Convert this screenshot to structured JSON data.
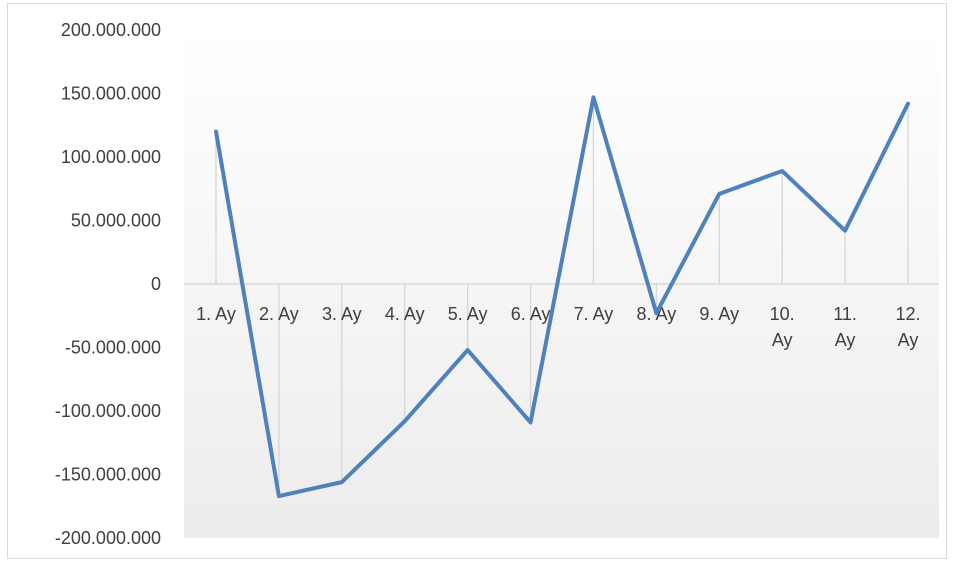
{
  "chart_data": {
    "type": "line",
    "categories": [
      [
        "1. Ay"
      ],
      [
        "2. Ay"
      ],
      [
        "3. Ay"
      ],
      [
        "4. Ay"
      ],
      [
        "5. Ay"
      ],
      [
        "6. Ay"
      ],
      [
        "7. Ay"
      ],
      [
        "8. Ay"
      ],
      [
        "9. Ay"
      ],
      [
        "10.",
        "Ay"
      ],
      [
        "11.",
        "Ay"
      ],
      [
        "12.",
        "Ay"
      ]
    ],
    "series": [
      {
        "values": [
          120000000,
          -167000000,
          -156000000,
          -108000000,
          -52000000,
          -109000000,
          147000000,
          -23000000,
          71000000,
          89000000,
          42000000,
          142000000
        ],
        "color": "#4f81bd"
      }
    ],
    "y_ticks": [
      "200.000.000",
      "150.000.000",
      "100.000.000",
      "50.000.000",
      "0",
      "-50.000.000",
      "-100.000.000",
      "-150.000.000",
      "-200.000.000"
    ],
    "ylim": [
      -200000000,
      200000000
    ],
    "drop_lines": true,
    "legend": "none"
  }
}
